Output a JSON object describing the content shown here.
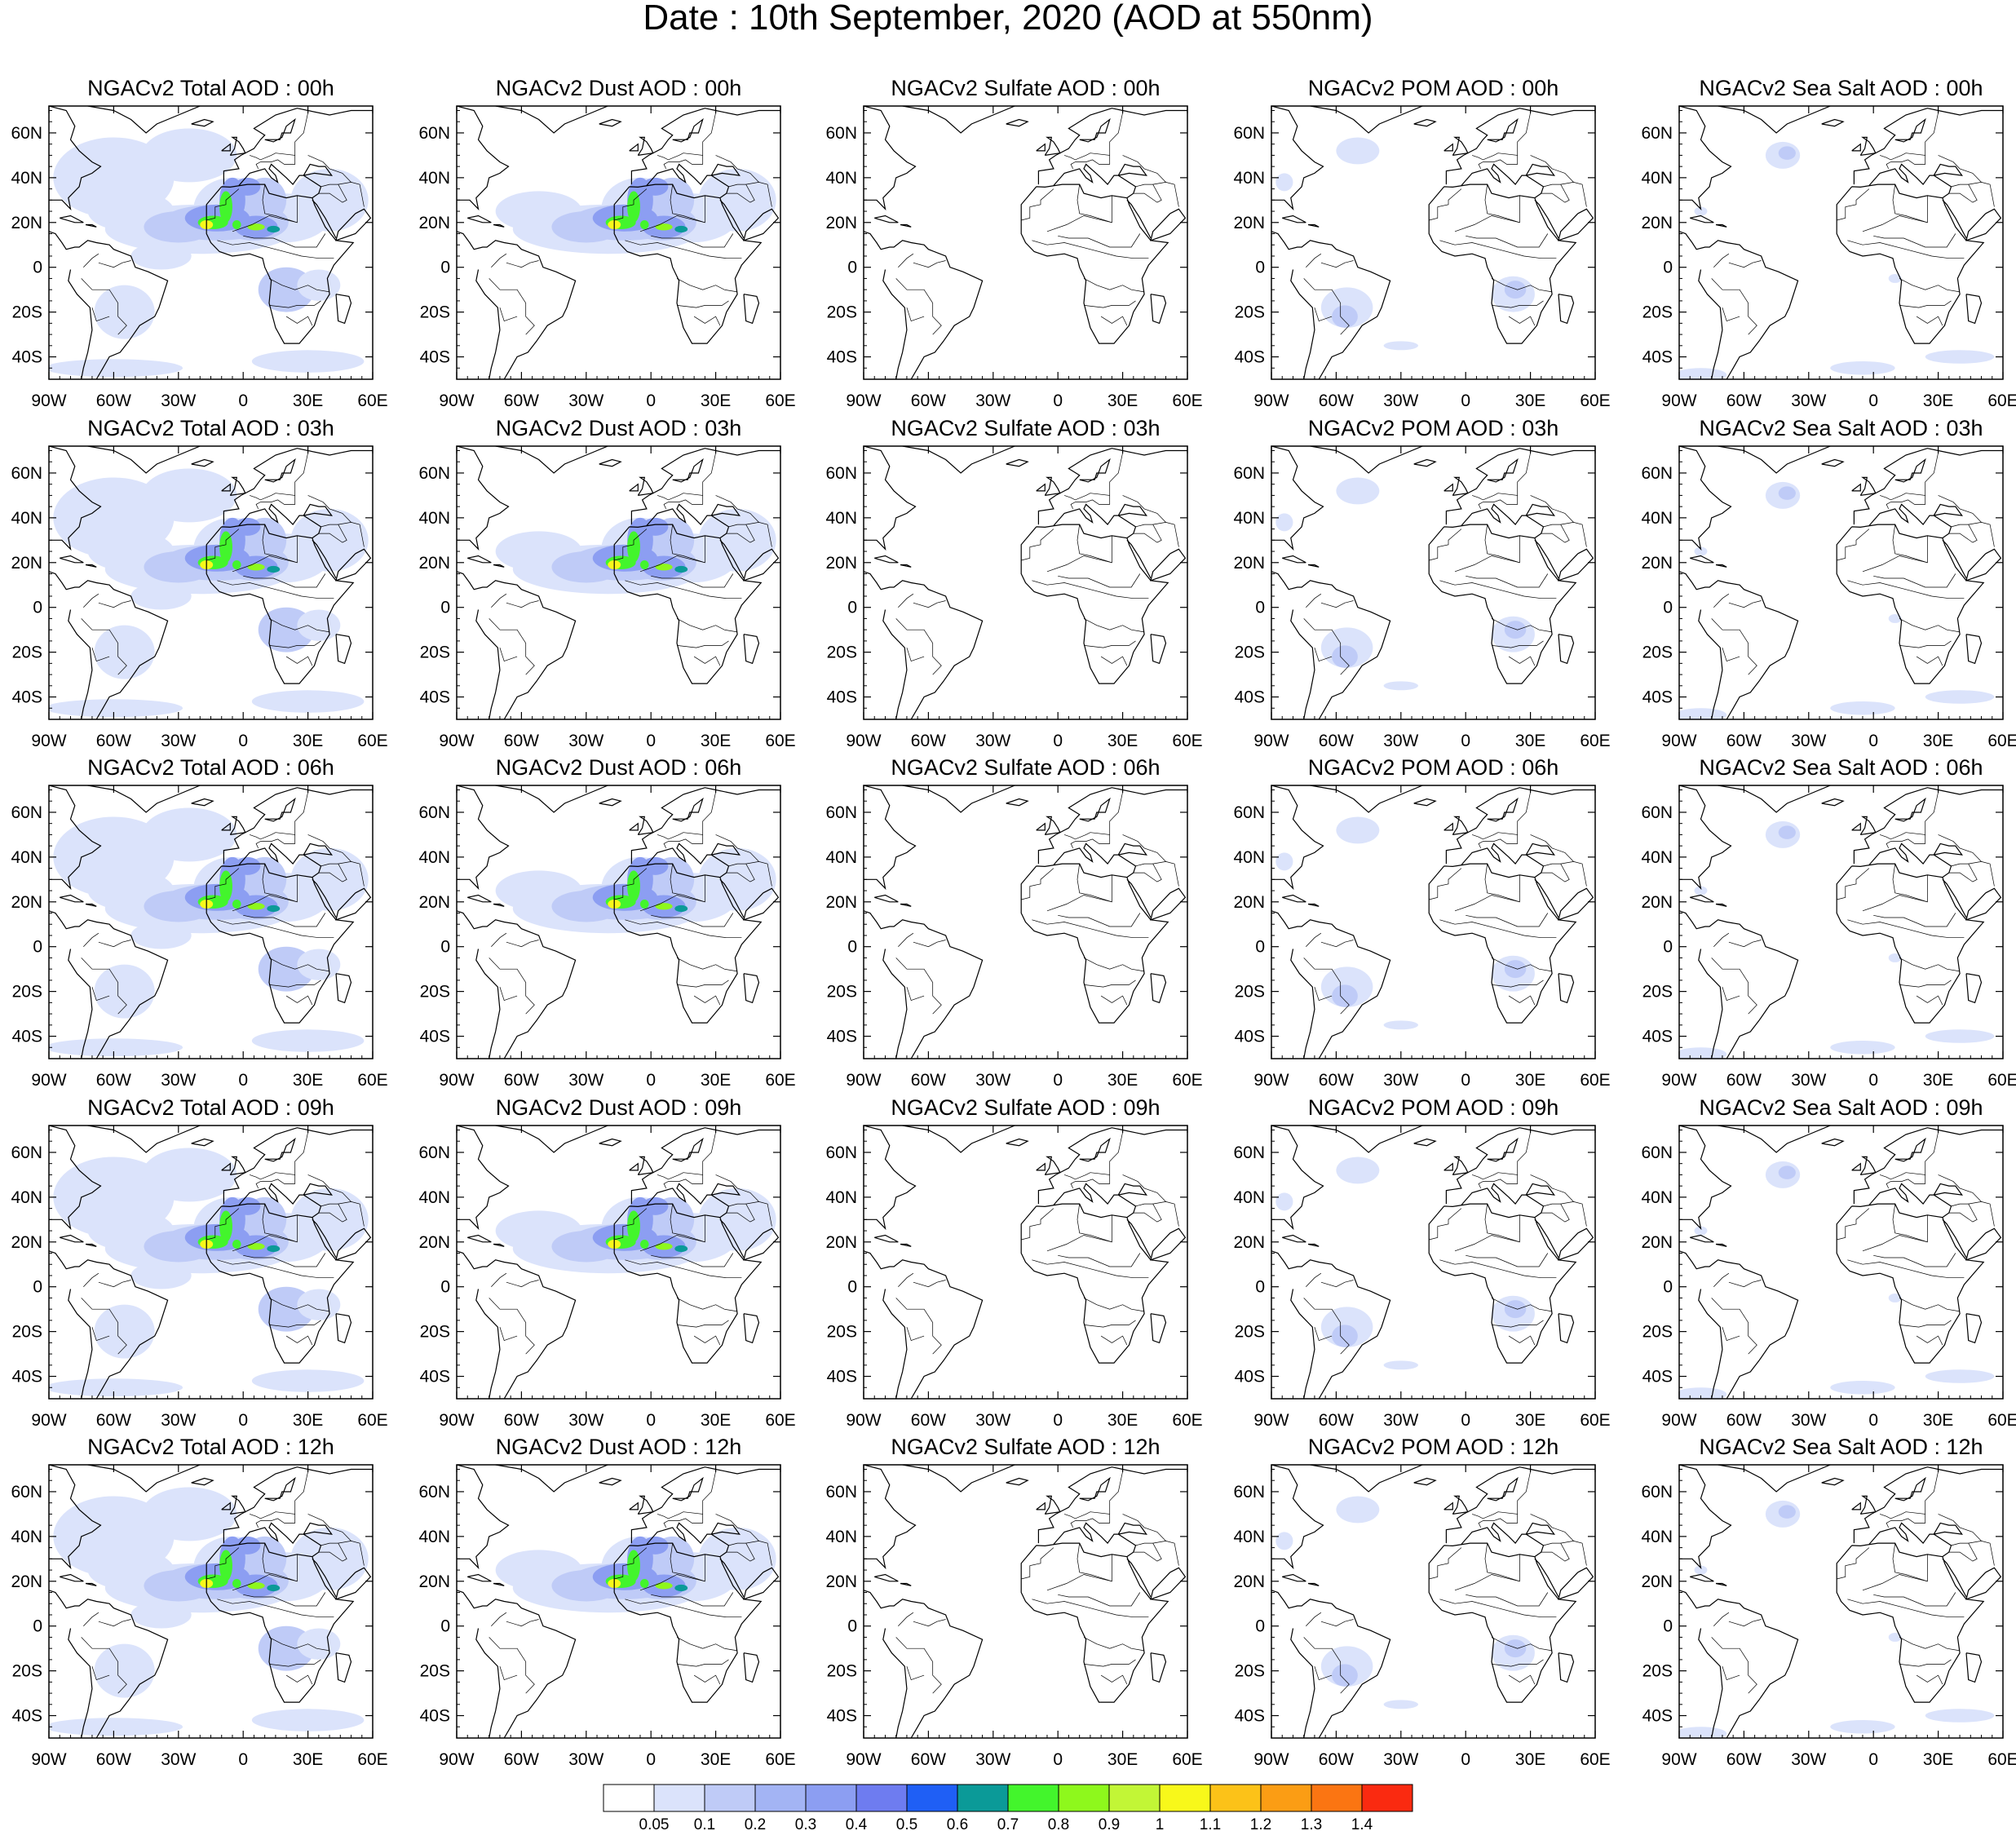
{
  "title": "Date : 10th September, 2020 (AOD at 550nm)",
  "maps": {
    "lon_ticks": [
      "90W",
      "60W",
      "30W",
      "0",
      "30E",
      "60E"
    ],
    "lat_ticks": [
      "60N",
      "40N",
      "20N",
      "0",
      "20S",
      "40S"
    ],
    "extent": {
      "lon": [
        -90,
        60
      ],
      "lat": [
        -50,
        72
      ]
    },
    "rows": [
      [
        "NGACv2 Total AOD : 00h",
        "NGACv2 Dust AOD : 00h",
        "NGACv2 Sulfate AOD : 00h",
        "NGACv2 POM AOD : 00h",
        "NGACv2 Sea Salt AOD : 00h"
      ],
      [
        "NGACv2 Total AOD : 03h",
        "NGACv2 Dust AOD : 03h",
        "NGACv2 Sulfate AOD : 03h",
        "NGACv2 POM AOD : 03h",
        "NGACv2 Sea Salt AOD : 03h"
      ],
      [
        "NGACv2 Total AOD : 06h",
        "NGACv2 Dust AOD : 06h",
        "NGACv2 Sulfate AOD : 06h",
        "NGACv2 POM AOD : 06h",
        "NGACv2 Sea Salt AOD : 06h"
      ],
      [
        "NGACv2 Total AOD : 09h",
        "NGACv2 Dust AOD : 09h",
        "NGACv2 Sulfate AOD : 09h",
        "NGACv2 POM AOD : 09h",
        "NGACv2 Sea Salt  AOD : 09h"
      ],
      [
        "NGACv2 Total AOD  : 12h",
        "NGACv2 Dust AOD : 12h",
        "NGACv2 Sulfate AOD : 12h",
        "NGACv2 POM  AOD : 12h",
        "NGACv2 Sea Salt  AOD : 12h"
      ]
    ]
  },
  "colorbar": {
    "colors": [
      "#ffffff",
      "#dbe3fb",
      "#bfcbf7",
      "#a3b4f4",
      "#8c9ef2",
      "#6e7cf0",
      "#1f5ff5",
      "#0b9a98",
      "#43f52c",
      "#8ef81c",
      "#c2f636",
      "#f8f81a",
      "#fcc218",
      "#fb9d14",
      "#fb7512",
      "#fa2a10"
    ],
    "labels": [
      "0.05",
      "0.1",
      "0.2",
      "0.3",
      "0.4",
      "0.5",
      "0.6",
      "0.7",
      "0.8",
      "0.9",
      "1",
      "1.1",
      "1.2",
      "1.3",
      "1.4"
    ]
  }
}
